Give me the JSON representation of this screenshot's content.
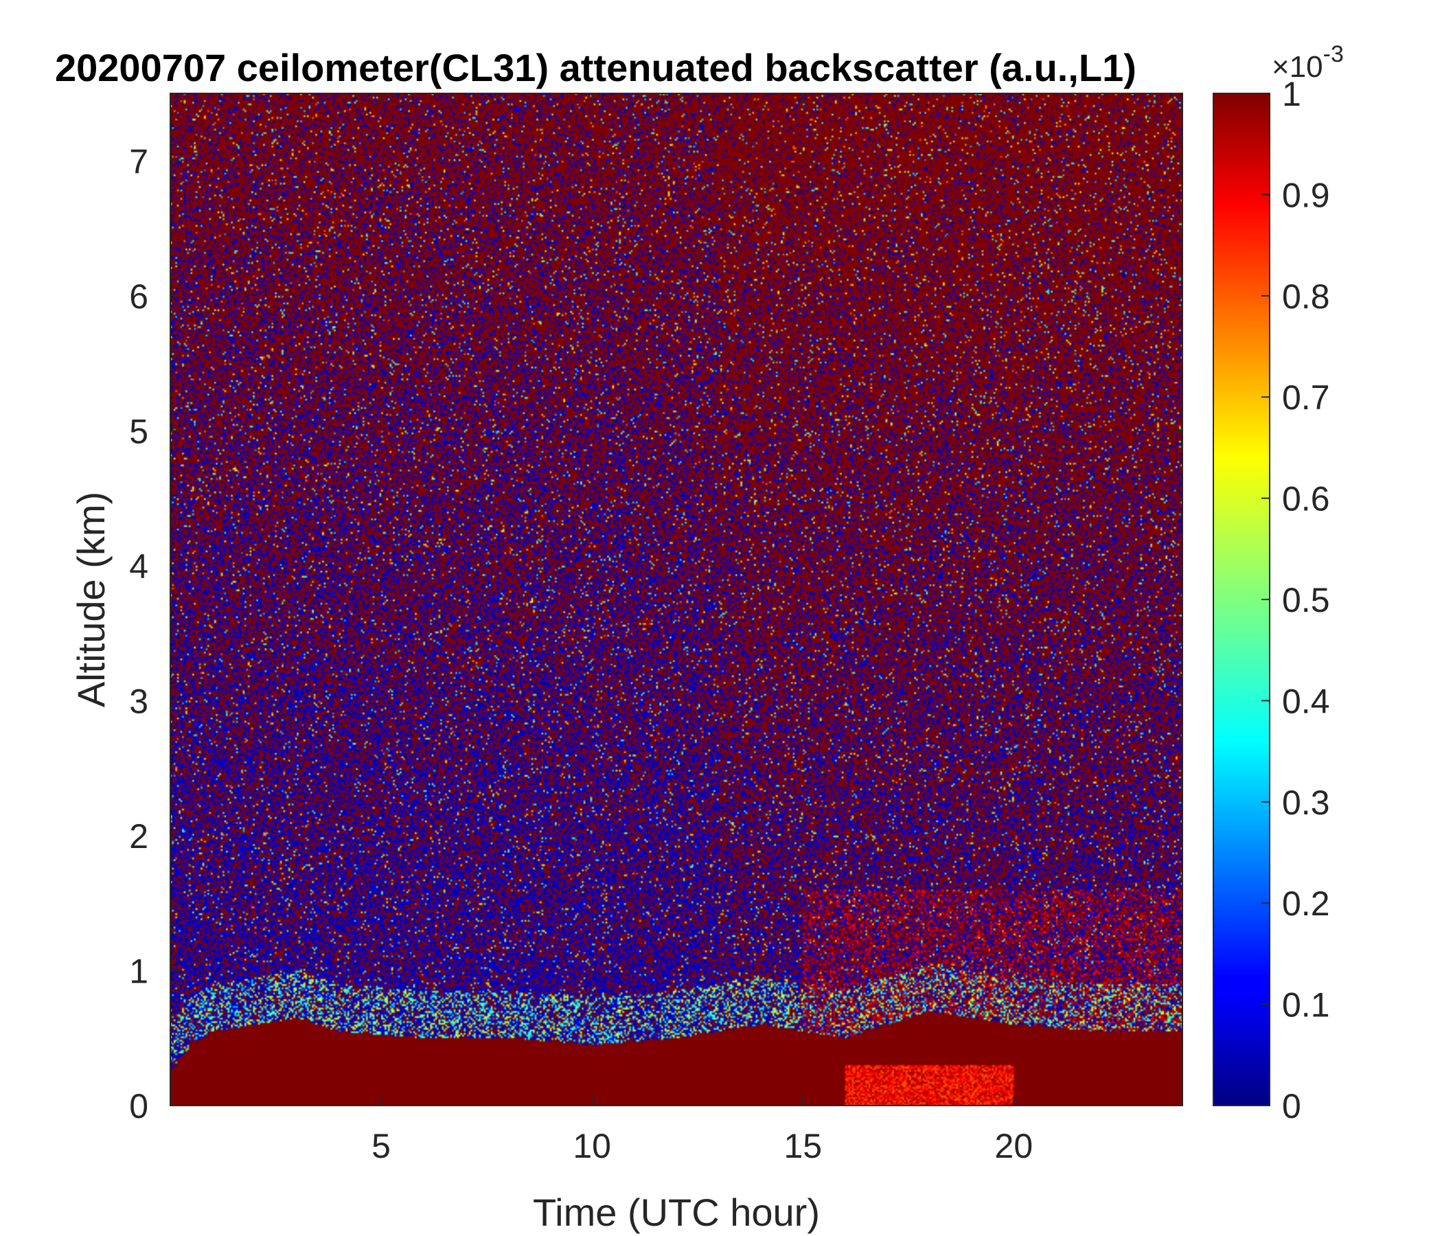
{
  "chart_data": {
    "type": "heatmap",
    "title": "20200707 ceilometer(CL31) attenuated backscatter (a.u.,L1)",
    "xlabel": "Time (UTC hour)",
    "ylabel": "Altitude (km)",
    "xlim": [
      0,
      24
    ],
    "ylim": [
      0,
      7.5
    ],
    "xticks": [
      5,
      10,
      15,
      20
    ],
    "yticks": [
      0,
      1,
      2,
      3,
      4,
      5,
      6,
      7
    ],
    "colorbar": {
      "colormap": "jet",
      "clim": [
        0,
        1
      ],
      "ticks": [
        0,
        0.1,
        0.2,
        0.3,
        0.4,
        0.5,
        0.6,
        0.7,
        0.8,
        0.9,
        1
      ],
      "ticklabels": [
        "0",
        "0.1",
        "0.2",
        "0.3",
        "0.4",
        "0.5",
        "0.6",
        "0.7",
        "0.8",
        "0.9",
        "1"
      ],
      "exponent_base": "×10",
      "exponent_power": "-3"
    },
    "features": {
      "boundary_layer_top_km": [
        {
          "hour": 0.0,
          "km": 0.25
        },
        {
          "hour": 0.5,
          "km": 0.45
        },
        {
          "hour": 1.0,
          "km": 0.55
        },
        {
          "hour": 2.0,
          "km": 0.6
        },
        {
          "hour": 3.0,
          "km": 0.65
        },
        {
          "hour": 4.0,
          "km": 0.55
        },
        {
          "hour": 6.0,
          "km": 0.5
        },
        {
          "hour": 8.0,
          "km": 0.5
        },
        {
          "hour": 10.0,
          "km": 0.45
        },
        {
          "hour": 12.0,
          "km": 0.5
        },
        {
          "hour": 14.0,
          "km": 0.6
        },
        {
          "hour": 16.0,
          "km": 0.5
        },
        {
          "hour": 18.0,
          "km": 0.7
        },
        {
          "hour": 20.0,
          "km": 0.6
        },
        {
          "hour": 22.0,
          "km": 0.55
        },
        {
          "hour": 24.0,
          "km": 0.55
        }
      ]
    }
  }
}
